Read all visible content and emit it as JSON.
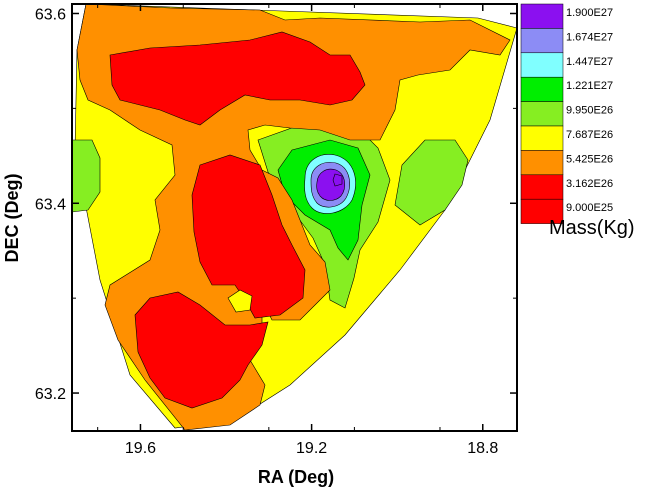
{
  "chart_data": {
    "type": "heatmap",
    "subtype": "filled-contour",
    "title": "",
    "xlabel": "RA (Deg)",
    "ylabel": "DEC (Deg)",
    "xlim": [
      19.76,
      18.72
    ],
    "ylim": [
      63.16,
      63.61
    ],
    "x_reversed": true,
    "x_ticks": [
      "19.6",
      "19.2",
      "18.8"
    ],
    "y_ticks": [
      "63.2",
      "63.4",
      "63.6"
    ],
    "grid": false,
    "legend_title": "Mass(Kg)",
    "legend_position": "right",
    "levels": [
      {
        "label": "1.900E27",
        "color": "#8b10f0"
      },
      {
        "label": "1.674E27",
        "color": "#8c8cf5"
      },
      {
        "label": "1.447E27",
        "color": "#80ffff"
      },
      {
        "label": "1.221E27",
        "color": "#00ee00"
      },
      {
        "label": "9.950E26",
        "color": "#86ee22"
      },
      {
        "label": "7.687E26",
        "color": "#ffff00"
      },
      {
        "label": "5.425E26",
        "color": "#ff9000"
      },
      {
        "label": "3.162E26",
        "color": "#ff0000"
      },
      {
        "label": "9.000E25",
        "color": "#ff0000"
      }
    ],
    "regions": [
      {
        "level": "3.162E26",
        "ra": 19.5,
        "dec": 63.53,
        "note": "upper red band"
      },
      {
        "level": "3.162E26",
        "ra": 19.42,
        "dec": 63.37,
        "note": "central red region"
      },
      {
        "level": "3.162E26",
        "ra": 19.5,
        "dec": 63.22,
        "note": "lower red region"
      },
      {
        "level": "1.221E27",
        "ra": 19.18,
        "dec": 63.42,
        "note": "green ring"
      },
      {
        "level": "1.900E27",
        "ra": 19.17,
        "dec": 63.42,
        "note": "peak"
      }
    ]
  }
}
